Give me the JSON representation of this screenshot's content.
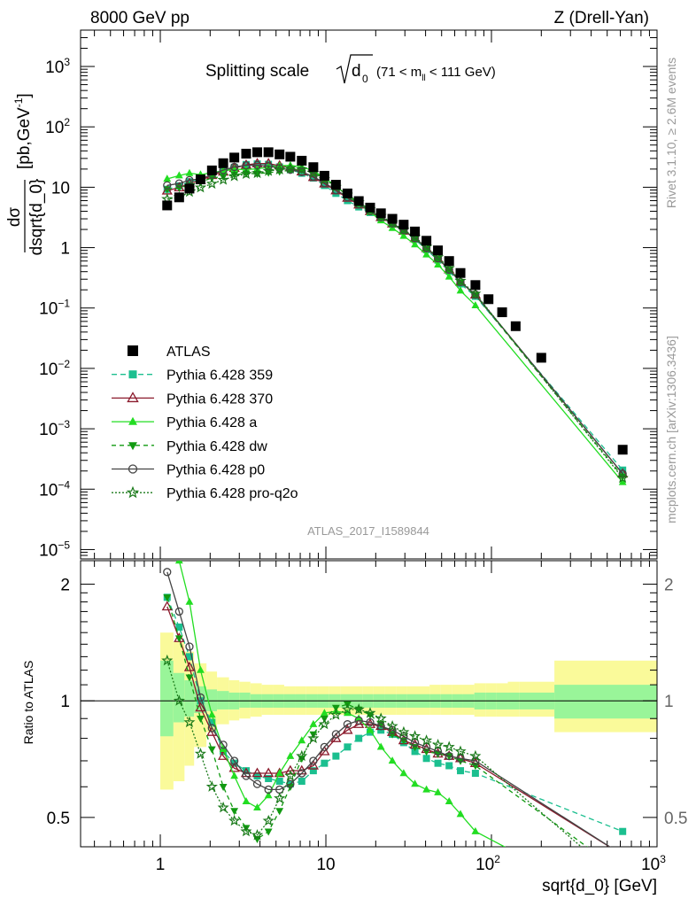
{
  "header": {
    "energy": "8000 GeV pp",
    "process": "Z (Drell-Yan)",
    "rivet": "Rivet 3.1.10, ≥ 2.6M events",
    "mcplots": "mcplots.cern.ch [arXiv:1306.3436]",
    "analysis_id": "ATLAS_2017_I1589844"
  },
  "title": {
    "prefix": "Splitting scale",
    "root_var": "d",
    "root_sub": "0",
    "mass_cut_open": "(71 < m",
    "mass_sub": "ll",
    "mass_cut_close": " < 111 GeV)"
  },
  "axes": {
    "xlabel": "sqrt{d_0} [GeV]",
    "ylabel_num": "dσ",
    "ylabel_den": "dsqrt{d_0}",
    "ylabel_units": "[pb,GeV",
    "ylabel_sup": "-1",
    "ylabel_close": "]",
    "ratio_label": "Ratio to ATLAS"
  },
  "colors": {
    "atlas": "#000000",
    "p359": "#1bbf8f",
    "p370": "#8b1a2c",
    "pa": "#22dd22",
    "pdw": "#119a11",
    "pp0": "#444444",
    "pq2o": "#1a7a1a",
    "band_inner": "#99f599",
    "band_outer": "#fafa9a"
  },
  "chart_data": {
    "type": "line",
    "x_scale": "log",
    "xlim": [
      0.33,
      1000
    ],
    "ylim": [
      7e-06,
      4000
    ],
    "ratio_ylim": [
      0.42,
      2.3
    ],
    "x_ticks": [
      {
        "value": 1,
        "label": "1"
      },
      {
        "value": 10,
        "label": "10"
      },
      {
        "value": 100,
        "label": "10",
        "sup": "2"
      },
      {
        "value": 1000,
        "label": "10",
        "sup": "3"
      }
    ],
    "y_ticks": [
      {
        "value": 1000,
        "label": "10",
        "sup": "3"
      },
      {
        "value": 100,
        "label": "10",
        "sup": "2"
      },
      {
        "value": 10,
        "label": "10",
        "sup": ""
      },
      {
        "value": 1,
        "label": "1",
        "sup": ""
      },
      {
        "value": 0.1,
        "label": "10",
        "sup": "−1"
      },
      {
        "value": 0.01,
        "label": "10",
        "sup": "−2"
      },
      {
        "value": 0.001,
        "label": "10",
        "sup": "−3"
      },
      {
        "value": 0.0001,
        "label": "10",
        "sup": "−4"
      },
      {
        "value": 1e-05,
        "label": "10",
        "sup": "−5"
      }
    ],
    "ratio_ticks": [
      {
        "value": 2,
        "label": "2"
      },
      {
        "value": 1,
        "label": "1"
      },
      {
        "value": 0.5,
        "label": "0.5"
      }
    ],
    "x": [
      1.1,
      1.3,
      1.5,
      1.75,
      2.05,
      2.4,
      2.8,
      3.3,
      3.85,
      4.5,
      5.25,
      6.1,
      7.15,
      8.4,
      9.8,
      11.5,
      13.5,
      15.8,
      18.5,
      21.5,
      25.2,
      29.5,
      34.5,
      40.5,
      47.5,
      55.5,
      65,
      80,
      96,
      116,
      140,
      200,
      620
    ],
    "atlas": [
      5.0,
      6.8,
      9.5,
      13.5,
      19,
      25,
      31,
      36,
      38,
      38,
      35,
      32,
      27.5,
      21.5,
      15.5,
      11,
      7.9,
      5.9,
      4.6,
      3.7,
      3.0,
      2.4,
      1.85,
      1.3,
      0.9,
      0.6,
      0.38,
      0.24,
      0.14,
      0.085,
      0.05,
      0.015,
      0.00045
    ],
    "band_edges": [
      1.0,
      1.2,
      1.4,
      1.6,
      1.9,
      2.2,
      2.6,
      3.0,
      3.5,
      4.1,
      4.8,
      5.6,
      6.5,
      7.6,
      8.9,
      10.4,
      12.2,
      14.2,
      16.6,
      19.4,
      22.7,
      26.5,
      31,
      36.2,
      42.3,
      49.4,
      57.7,
      67.4,
      78.8,
      92,
      107.5,
      125.6,
      146.8,
      240,
      1000
    ],
    "band_inner": [
      [
        0.81,
        1.27
      ],
      [
        0.88,
        1.18
      ],
      [
        0.91,
        1.13
      ],
      [
        0.93,
        1.09
      ],
      [
        0.94,
        1.07
      ],
      [
        0.95,
        1.06
      ],
      [
        0.95,
        1.05
      ],
      [
        0.96,
        1.05
      ],
      [
        0.96,
        1.04
      ],
      [
        0.96,
        1.04
      ],
      [
        0.96,
        1.04
      ],
      [
        0.96,
        1.04
      ],
      [
        0.96,
        1.04
      ],
      [
        0.96,
        1.04
      ],
      [
        0.96,
        1.04
      ],
      [
        0.96,
        1.04
      ],
      [
        0.96,
        1.04
      ],
      [
        0.96,
        1.04
      ],
      [
        0.96,
        1.04
      ],
      [
        0.96,
        1.04
      ],
      [
        0.96,
        1.04
      ],
      [
        0.96,
        1.04
      ],
      [
        0.96,
        1.04
      ],
      [
        0.96,
        1.04
      ],
      [
        0.96,
        1.04
      ],
      [
        0.96,
        1.04
      ],
      [
        0.96,
        1.04
      ],
      [
        0.96,
        1.04
      ],
      [
        0.95,
        1.05
      ],
      [
        0.95,
        1.05
      ],
      [
        0.95,
        1.05
      ],
      [
        0.95,
        1.05
      ],
      [
        0.95,
        1.05
      ],
      [
        0.9,
        1.1
      ]
    ],
    "band_outer": [
      [
        0.59,
        1.5
      ],
      [
        0.62,
        1.42
      ],
      [
        0.68,
        1.34
      ],
      [
        0.76,
        1.25
      ],
      [
        0.83,
        1.19
      ],
      [
        0.87,
        1.15
      ],
      [
        0.89,
        1.13
      ],
      [
        0.9,
        1.12
      ],
      [
        0.91,
        1.11
      ],
      [
        0.92,
        1.1
      ],
      [
        0.92,
        1.1
      ],
      [
        0.92,
        1.09
      ],
      [
        0.92,
        1.09
      ],
      [
        0.92,
        1.09
      ],
      [
        0.92,
        1.09
      ],
      [
        0.92,
        1.09
      ],
      [
        0.92,
        1.09
      ],
      [
        0.92,
        1.09
      ],
      [
        0.92,
        1.09
      ],
      [
        0.92,
        1.09
      ],
      [
        0.92,
        1.09
      ],
      [
        0.92,
        1.09
      ],
      [
        0.92,
        1.09
      ],
      [
        0.92,
        1.09
      ],
      [
        0.92,
        1.1
      ],
      [
        0.92,
        1.1
      ],
      [
        0.92,
        1.1
      ],
      [
        0.92,
        1.1
      ],
      [
        0.91,
        1.11
      ],
      [
        0.91,
        1.11
      ],
      [
        0.91,
        1.11
      ],
      [
        0.91,
        1.12
      ],
      [
        0.91,
        1.12
      ],
      [
        0.83,
        1.27
      ]
    ],
    "series": [
      {
        "name": "Pythia 6.428 359",
        "key": "p359",
        "marker": "square",
        "dash": "6,4",
        "ratio": [
          1.85,
          1.55,
          1.3,
          1.0,
          0.88,
          0.74,
          0.69,
          0.66,
          0.64,
          0.63,
          0.62,
          0.61,
          0.62,
          0.66,
          0.69,
          0.72,
          0.76,
          0.8,
          0.83,
          0.84,
          0.82,
          0.78,
          0.74,
          0.71,
          0.69,
          0.68,
          0.66,
          0.65,
          null,
          null,
          null,
          null,
          0.46
        ]
      },
      {
        "name": "Pythia 6.428 370",
        "key": "p370",
        "marker": "triangle-open",
        "dash": "",
        "ratio": [
          1.75,
          1.45,
          1.22,
          0.96,
          0.83,
          0.72,
          0.67,
          0.65,
          0.65,
          0.65,
          0.65,
          0.66,
          0.66,
          0.68,
          0.74,
          0.8,
          0.84,
          0.87,
          0.87,
          0.86,
          0.83,
          0.79,
          0.77,
          0.75,
          0.73,
          0.72,
          0.71,
          0.69,
          null,
          null,
          null,
          null,
          0.4
        ]
      },
      {
        "name": "Pythia 6.428 a",
        "key": "pa",
        "marker": "triangle",
        "dash": "",
        "ratio": [
          2.75,
          2.3,
          1.8,
          1.2,
          0.92,
          0.75,
          0.64,
          0.55,
          0.53,
          0.57,
          0.65,
          0.72,
          0.79,
          0.87,
          0.93,
          0.94,
          0.93,
          0.9,
          0.84,
          0.76,
          0.7,
          0.65,
          0.61,
          0.59,
          0.58,
          0.55,
          0.51,
          0.46,
          null,
          null,
          null,
          null,
          0.29
        ]
      },
      {
        "name": "Pythia 6.428 dw",
        "key": "pdw",
        "marker": "triangle-down",
        "dash": "5,4",
        "ratio": [
          1.85,
          1.45,
          1.15,
          0.9,
          0.75,
          0.6,
          0.52,
          0.47,
          0.44,
          0.46,
          0.52,
          0.6,
          0.71,
          0.82,
          0.9,
          0.96,
          0.98,
          0.95,
          0.92,
          0.87,
          0.82,
          0.79,
          0.76,
          0.74,
          0.73,
          0.72,
          0.7,
          0.68,
          null,
          null,
          null,
          null,
          0.36
        ]
      },
      {
        "name": "Pythia 6.428 p0",
        "key": "pp0",
        "marker": "circle-open",
        "dash": "",
        "ratio": [
          2.15,
          1.7,
          1.38,
          1.02,
          0.85,
          0.77,
          0.7,
          0.64,
          0.61,
          0.59,
          0.59,
          0.61,
          0.65,
          0.7,
          0.76,
          0.82,
          0.87,
          0.89,
          0.88,
          0.86,
          0.84,
          0.81,
          0.78,
          0.76,
          0.74,
          0.72,
          0.71,
          0.7,
          null,
          null,
          null,
          null,
          0.4
        ]
      },
      {
        "name": "Pythia 6.428 pro-q2o",
        "key": "pq2o",
        "marker": "star",
        "dash": "2,2",
        "ratio": [
          1.27,
          1.0,
          0.88,
          0.73,
          0.6,
          0.53,
          0.49,
          0.46,
          0.45,
          0.49,
          0.56,
          0.64,
          0.72,
          0.8,
          0.87,
          0.92,
          0.95,
          0.95,
          0.93,
          0.9,
          0.86,
          0.83,
          0.81,
          0.79,
          0.77,
          0.76,
          0.74,
          0.72,
          null,
          null,
          null,
          null,
          0.34
        ]
      }
    ],
    "legend": [
      {
        "name": "ATLAS",
        "key": "atlas",
        "marker": "square",
        "dash": "none"
      },
      {
        "name": "Pythia 6.428 359",
        "key": "p359",
        "marker": "square",
        "dash": "6,4"
      },
      {
        "name": "Pythia 6.428 370",
        "key": "p370",
        "marker": "triangle-open",
        "dash": ""
      },
      {
        "name": "Pythia 6.428 a",
        "key": "pa",
        "marker": "triangle",
        "dash": ""
      },
      {
        "name": "Pythia 6.428 dw",
        "key": "pdw",
        "marker": "triangle-down",
        "dash": "5,4"
      },
      {
        "name": "Pythia 6.428 p0",
        "key": "pp0",
        "marker": "circle-open",
        "dash": ""
      },
      {
        "name": "Pythia 6.428 pro-q2o",
        "key": "pq2o",
        "marker": "star",
        "dash": "2,2"
      }
    ]
  }
}
